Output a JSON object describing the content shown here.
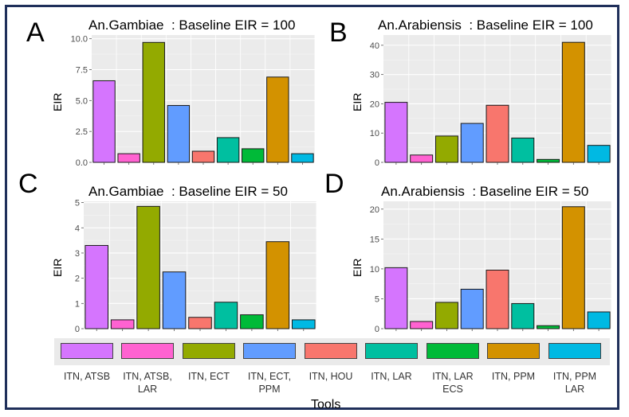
{
  "colors": [
    "#D575FE",
    "#FF62D1",
    "#93AA00",
    "#619CFF",
    "#F8766D",
    "#00BFA0",
    "#00BA38",
    "#D39200",
    "#00B9E3"
  ],
  "panels": [
    {
      "letter": "A",
      "title": "An.Gambiae  : Baseline EIR = 100",
      "ylabel": "EIR"
    },
    {
      "letter": "B",
      "title": "An.Arabiensis  : Baseline EIR = 100",
      "ylabel": "EIR"
    },
    {
      "letter": "C",
      "title": "An.Gambiae  : Baseline EIR = 50",
      "ylabel": "EIR"
    },
    {
      "letter": "D",
      "title": "An.Arabiensis  : Baseline EIR = 50",
      "ylabel": "EIR"
    }
  ],
  "legend": {
    "title": "Tools",
    "labels": [
      "ITN, ATSB",
      "ITN, ATSB,\nLAR",
      "ITN, ECT",
      "ITN, ECT,\nPPM",
      "ITN, HOU",
      "ITN, LAR",
      "ITN, LAR\nECS",
      "ITN, PPM",
      "ITN, PPM\nLAR"
    ]
  },
  "chart_data": [
    {
      "type": "bar",
      "title": "An.Gambiae  : Baseline EIR = 100",
      "ylabel": "EIR",
      "xlabel": "",
      "categories": [
        "ITN, ATSB",
        "ITN, ATSB, LAR",
        "ITN, ECT",
        "ITN, ECT, PPM",
        "ITN, HOU",
        "ITN, LAR",
        "ITN, LAR ECS",
        "ITN, PPM",
        "ITN, PPM LAR"
      ],
      "values": [
        6.6,
        0.7,
        9.7,
        4.6,
        0.9,
        2.0,
        1.1,
        6.9,
        0.7
      ],
      "ylim": [
        0,
        10.3
      ],
      "yticks": [
        0.0,
        2.5,
        5.0,
        7.5,
        10.0
      ],
      "tick_labels": [
        "0.0",
        "2.5",
        "5.0",
        "7.5",
        "10.0"
      ],
      "grid": true
    },
    {
      "type": "bar",
      "title": "An.Arabiensis  : Baseline EIR = 100",
      "ylabel": "EIR",
      "xlabel": "",
      "categories": [
        "ITN, ATSB",
        "ITN, ATSB, LAR",
        "ITN, ECT",
        "ITN, ECT, PPM",
        "ITN, HOU",
        "ITN, LAR",
        "ITN, LAR ECS",
        "ITN, PPM",
        "ITN, PPM LAR"
      ],
      "values": [
        20.5,
        2.5,
        9.0,
        13.3,
        19.5,
        8.3,
        1.0,
        41.0,
        5.8
      ],
      "ylim": [
        0,
        43.5
      ],
      "yticks": [
        0,
        10,
        20,
        30,
        40
      ],
      "tick_labels": [
        "0",
        "10",
        "20",
        "30",
        "40"
      ],
      "grid": true
    },
    {
      "type": "bar",
      "title": "An.Gambiae  : Baseline EIR = 50",
      "ylabel": "EIR",
      "xlabel": "",
      "categories": [
        "ITN, ATSB",
        "ITN, ATSB, LAR",
        "ITN, ECT",
        "ITN, ECT, PPM",
        "ITN, HOU",
        "ITN, LAR",
        "ITN, LAR ECS",
        "ITN, PPM",
        "ITN, PPM LAR"
      ],
      "values": [
        3.3,
        0.35,
        4.85,
        2.25,
        0.45,
        1.05,
        0.55,
        3.45,
        0.35
      ],
      "ylim": [
        0,
        5.05
      ],
      "yticks": [
        0,
        1,
        2,
        3,
        4,
        5
      ],
      "tick_labels": [
        "0",
        "1",
        "2",
        "3",
        "4",
        "5"
      ],
      "grid": true
    },
    {
      "type": "bar",
      "title": "An.Arabiensis  : Baseline EIR = 50",
      "ylabel": "EIR",
      "xlabel": "",
      "categories": [
        "ITN, ATSB",
        "ITN, ATSB, LAR",
        "ITN, ECT",
        "ITN, ECT, PPM",
        "ITN, HOU",
        "ITN, LAR",
        "ITN, LAR ECS",
        "ITN, PPM",
        "ITN, PPM LAR"
      ],
      "values": [
        10.2,
        1.2,
        4.4,
        6.6,
        9.8,
        4.2,
        0.5,
        20.4,
        2.8
      ],
      "ylim": [
        0,
        21.3
      ],
      "yticks": [
        0,
        5,
        10,
        15,
        20
      ],
      "tick_labels": [
        "0",
        "5",
        "10",
        "15",
        "20"
      ],
      "grid": true
    }
  ]
}
